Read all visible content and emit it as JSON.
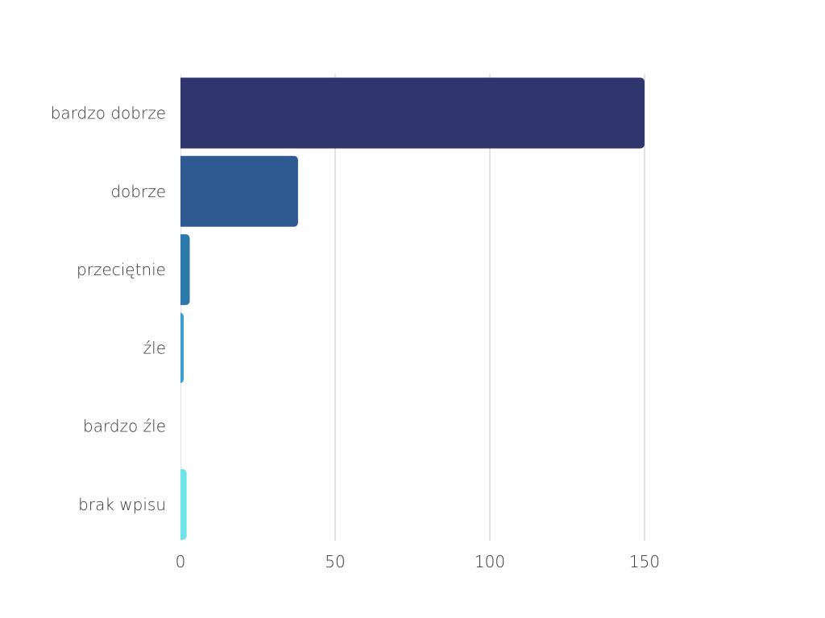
{
  "chart_data": {
    "type": "bar",
    "orientation": "horizontal",
    "categories": [
      "bardzo dobrze",
      "dobrze",
      "przeciętnie",
      "źle",
      "bardzo źle",
      "brak wpisu"
    ],
    "values": [
      150,
      38,
      3,
      1,
      0,
      2
    ],
    "colors": [
      "#31356e",
      "#2e5a91",
      "#2d78aa",
      "#3a9fd0",
      "#55c4de",
      "#6de3e6"
    ],
    "title": "",
    "xlabel": "",
    "ylabel": "",
    "xlim": [
      0,
      180
    ],
    "xticks": [
      0,
      50,
      100,
      150
    ],
    "grid": true,
    "legend": "none"
  }
}
